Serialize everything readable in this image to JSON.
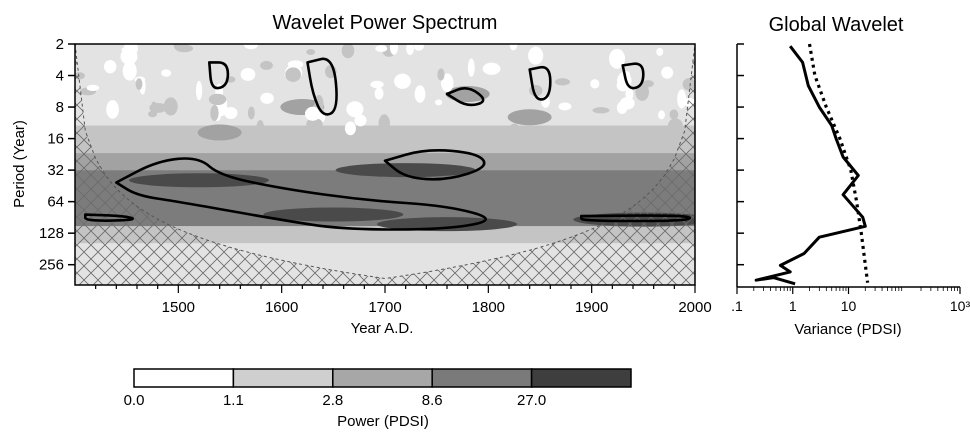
{
  "chart_data": [
    {
      "type": "heatmap",
      "title": "Wavelet Power Spectrum",
      "xlabel": "Year A.D.",
      "ylabel": "Period (Year)",
      "xlim": [
        1400,
        2000
      ],
      "ylim": [
        2,
        400
      ],
      "y_scale": "log2",
      "y_inverted": true,
      "x_ticks": [
        1500,
        1600,
        1700,
        1800,
        1900,
        2000
      ],
      "x_tick_labels": [
        "1500",
        "1600",
        "1700",
        "1800",
        "1900",
        "2000"
      ],
      "y_ticks": [
        2,
        4,
        8,
        16,
        32,
        64,
        128,
        256
      ],
      "y_tick_labels": [
        "2",
        "4",
        "8",
        "16",
        "32",
        "64",
        "128",
        "256"
      ],
      "bands": [
        {
          "period_range": [
            2,
            12
          ],
          "level": 1
        },
        {
          "period_range": [
            12,
            22
          ],
          "level": 2
        },
        {
          "period_range": [
            22,
            32
          ],
          "level": 3
        },
        {
          "period_range": [
            32,
            110
          ],
          "level": 4
        },
        {
          "period_range": [
            110,
            160
          ],
          "level": 2
        },
        {
          "period_range": [
            160,
            400
          ],
          "level": 1
        }
      ],
      "patches": [
        {
          "year": 1520,
          "period": 40,
          "level": 5
        },
        {
          "year": 1650,
          "period": 85,
          "level": 5
        },
        {
          "year": 1720,
          "period": 32,
          "level": 5
        },
        {
          "year": 1760,
          "period": 105,
          "level": 5
        },
        {
          "year": 1950,
          "period": 95,
          "level": 5
        },
        {
          "year": 1620,
          "period": 8,
          "level": 3
        },
        {
          "year": 1780,
          "period": 6,
          "level": 3
        },
        {
          "year": 1840,
          "period": 10,
          "level": 3
        },
        {
          "year": 1540,
          "period": 14,
          "level": 3
        }
      ],
      "cone_of_influence_hatched": true,
      "significance_contours": true
    },
    {
      "type": "line",
      "title": "Global Wavelet",
      "xlabel": "Variance (PDSI)",
      "x_scale": "log10",
      "xlim": [
        0.1,
        1000
      ],
      "x_tick_labels": [
        ".1",
        "1",
        "10",
        "10³"
      ],
      "ylim": [
        2,
        400
      ],
      "y_scale": "log2",
      "y_inverted": true,
      "series": [
        {
          "style": "solid",
          "points": [
            [
              0.9,
              2.1
            ],
            [
              1.5,
              3
            ],
            [
              1.9,
              5
            ],
            [
              3,
              8
            ],
            [
              5,
              12
            ],
            [
              6,
              16
            ],
            [
              8,
              24
            ],
            [
              15,
              36
            ],
            [
              8,
              55
            ],
            [
              18,
              90
            ],
            [
              20,
              110
            ],
            [
              3,
              140
            ],
            [
              1.6,
              200
            ],
            [
              0.6,
              260
            ],
            [
              0.9,
              300
            ],
            [
              0.22,
              360
            ],
            [
              0.45,
              340
            ],
            [
              1.1,
              390
            ]
          ]
        },
        {
          "style": "dotted",
          "points": [
            [
              2,
              2
            ],
            [
              2.5,
              4
            ],
            [
              4,
              8
            ],
            [
              7,
              16
            ],
            [
              11,
              32
            ],
            [
              14,
              64
            ],
            [
              17,
              128
            ],
            [
              22,
              380
            ]
          ]
        }
      ]
    }
  ],
  "colorbar": {
    "title": "Power (PDSI)",
    "tick_labels": [
      "0.0",
      "1.1",
      "2.8",
      "8.6",
      "27.0"
    ],
    "colors": [
      "#ffffff",
      "#cfcfcf",
      "#a7a7a7",
      "#7a7a7a",
      "#3e3e3e"
    ]
  },
  "colors": {
    "level_0": "#ffffff",
    "level_1": "#e3e3e3",
    "level_2": "#c4c4c4",
    "level_3": "#a2a2a2",
    "level_4": "#7c7c7c",
    "level_5": "#4a4a4a"
  }
}
